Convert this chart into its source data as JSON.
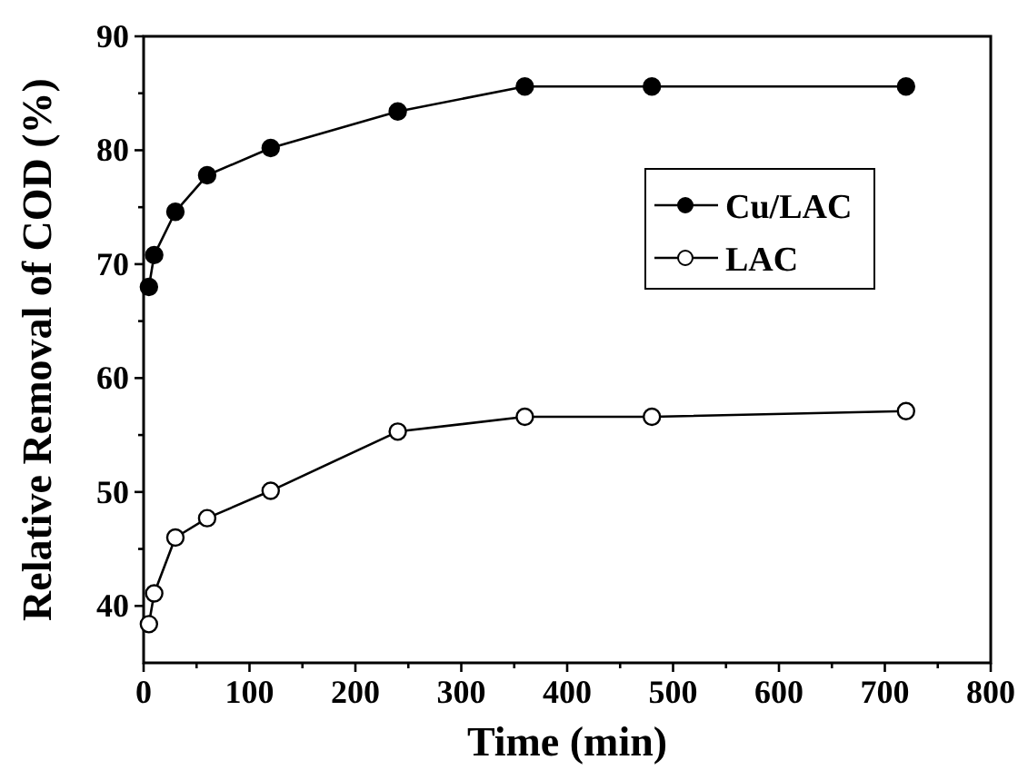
{
  "chart_data": {
    "type": "line",
    "xlabel": "Time (min)",
    "ylabel": "Relative Removal of COD (%)",
    "xlim": [
      0,
      800
    ],
    "ylim": [
      35,
      90
    ],
    "xticks": [
      0,
      {
        "value": 50,
        "label": null
      },
      100,
      {
        "value": 150,
        "label": null
      },
      200,
      {
        "value": 250,
        "label": null
      },
      300,
      {
        "value": 350,
        "label": null
      },
      400,
      {
        "value": 450,
        "label": null
      },
      500,
      {
        "value": 550,
        "label": null
      },
      600,
      {
        "value": 650,
        "label": null
      },
      700,
      {
        "value": 750,
        "label": null
      },
      800
    ],
    "yticks": [
      40,
      {
        "value": 45,
        "label": null
      },
      50,
      {
        "value": 55,
        "label": null
      },
      60,
      {
        "value": 65,
        "label": null
      },
      70,
      {
        "value": 75,
        "label": null
      },
      80,
      {
        "value": 85,
        "label": null
      },
      90
    ],
    "x": [
      5,
      10,
      30,
      60,
      120,
      240,
      360,
      480,
      720
    ],
    "series": [
      {
        "name": "Cu/LAC",
        "color": "#000000",
        "marker": "circle",
        "values": [
          68,
          70.8,
          74.6,
          77.8,
          80.2,
          83.4,
          85.6,
          85.6,
          85.6
        ]
      },
      {
        "name": "LAC",
        "color": "#000000",
        "marker": "circle",
        "values": [
          38.4,
          41.1,
          46,
          47.7,
          50.1,
          55.3,
          56.6,
          56.6,
          57.1
        ]
      }
    ],
    "legend": "right",
    "grid": false,
    "line_style": "solid"
  }
}
